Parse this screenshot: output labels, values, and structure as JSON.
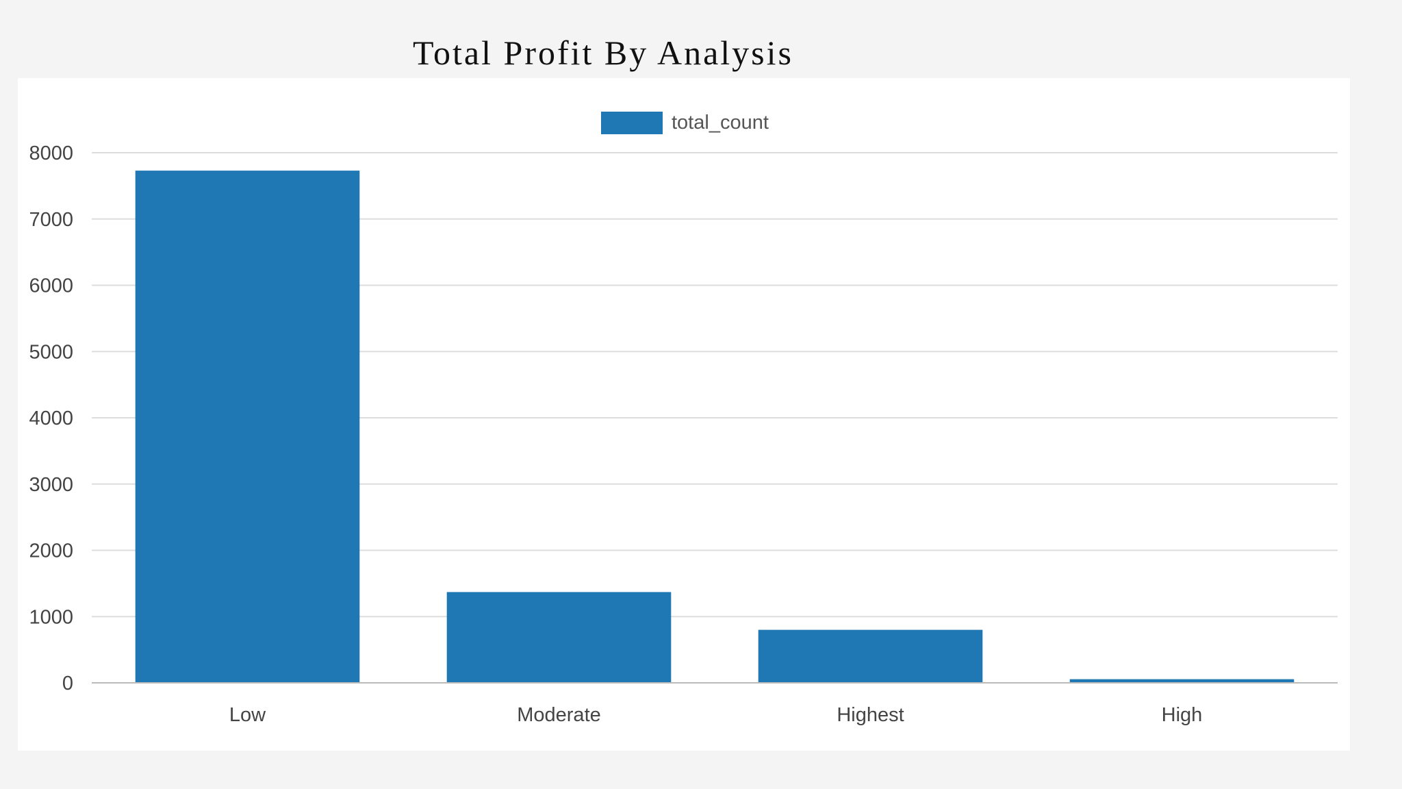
{
  "page_title": "Total Profit By Analysis",
  "colors": {
    "bar": "#1f77b4",
    "grid": "#dddddd",
    "axis": "#bbbbbb",
    "background": "#f4f4f4",
    "card": "#ffffff"
  },
  "chart_data": {
    "type": "bar",
    "title": "Total Profit By Analysis",
    "xlabel": "",
    "ylabel": "",
    "categories": [
      "Low",
      "Moderate",
      "Highest",
      "High"
    ],
    "series": [
      {
        "name": "total_count",
        "values": [
          7730,
          1370,
          800,
          55
        ]
      }
    ],
    "ylim": [
      0,
      8000
    ],
    "yticks": [
      0,
      1000,
      2000,
      3000,
      4000,
      5000,
      6000,
      7000,
      8000
    ],
    "grid": true,
    "legend": "top-center"
  }
}
